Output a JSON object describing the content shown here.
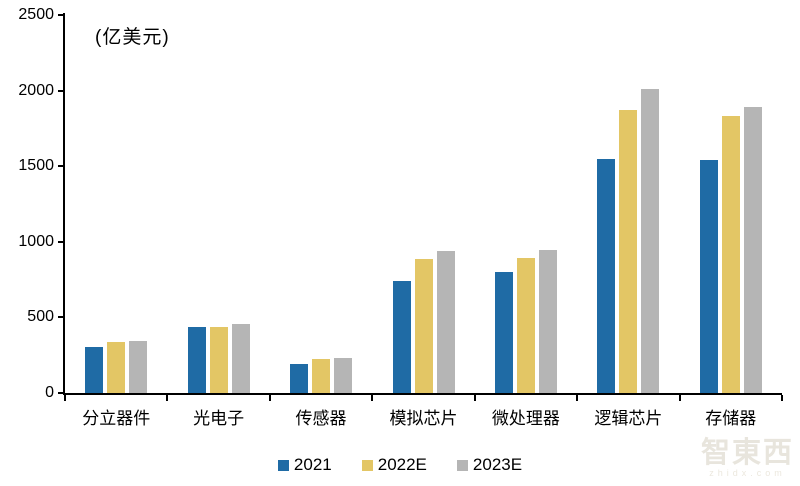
{
  "chart_data": {
    "type": "bar",
    "title": "",
    "unit_label": "(亿美元)",
    "xlabel": "",
    "ylabel": "",
    "categories": [
      "分立器件",
      "光电子",
      "传感器",
      "模拟芯片",
      "微处理器",
      "逻辑芯片",
      "存储器"
    ],
    "series": [
      {
        "name": "2021",
        "color": "#1F6BA5",
        "values": [
          303,
          434,
          191,
          741,
          802,
          1548,
          1538
        ]
      },
      {
        "name": "2022E",
        "color": "#E3C665",
        "values": [
          335,
          435,
          222,
          884,
          895,
          1870,
          1830
        ]
      },
      {
        "name": "2023E",
        "color": "#B5B5B5",
        "values": [
          345,
          455,
          233,
          936,
          944,
          2010,
          1893
        ]
      }
    ],
    "ylim": [
      0,
      2500
    ],
    "yticks": [
      0,
      500,
      1000,
      1500,
      2000,
      2500
    ],
    "grid": false,
    "legend_position": "bottom-center",
    "axis_color": "#000000"
  },
  "watermark": {
    "logo": "智東西",
    "domain": "zhidx.com"
  }
}
